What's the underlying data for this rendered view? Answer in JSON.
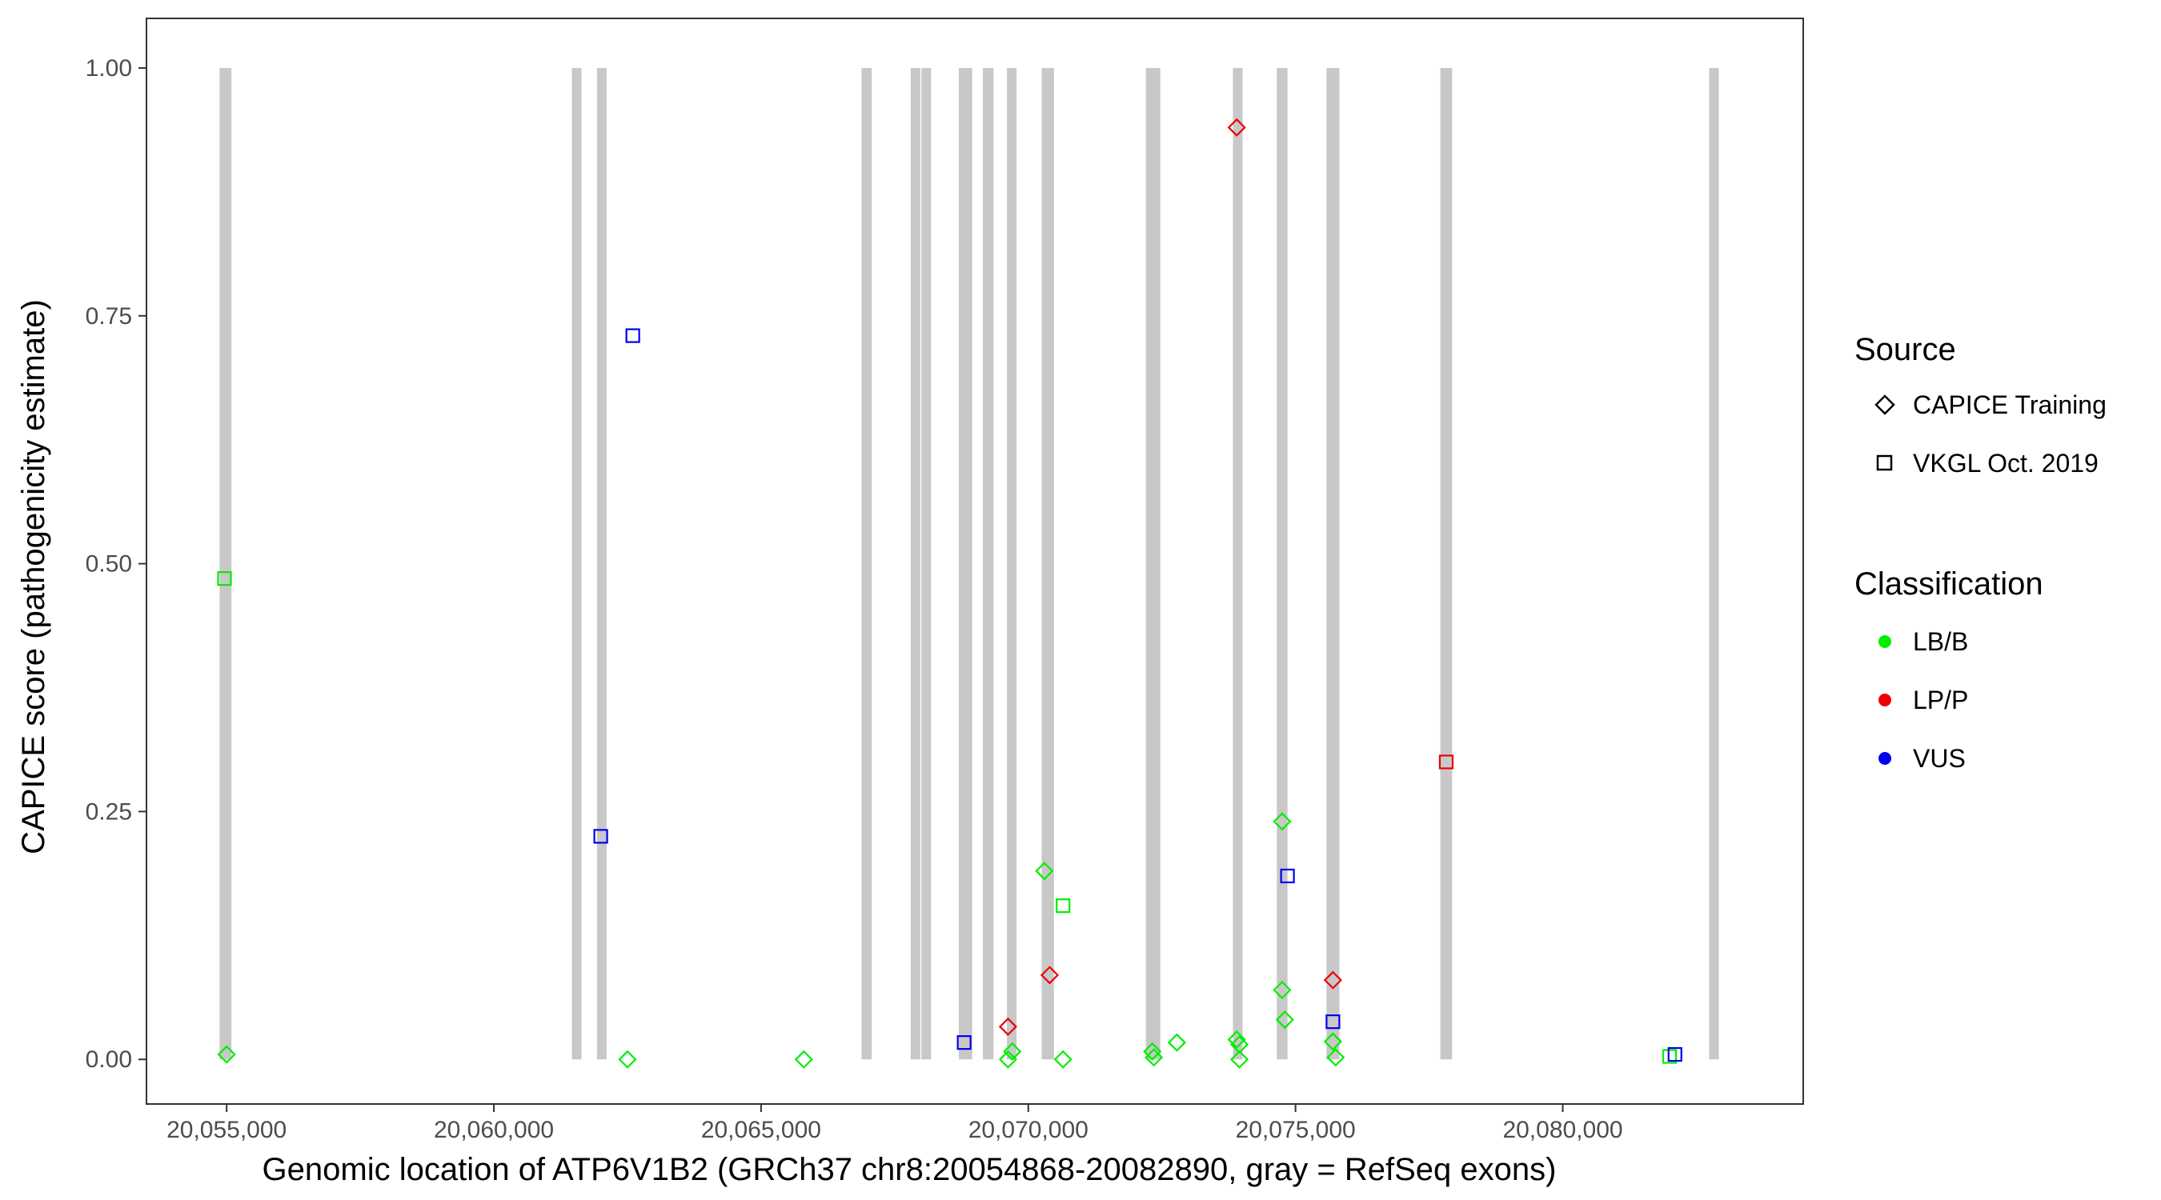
{
  "chart_data": {
    "type": "scatter",
    "xlabel": "Genomic location of ATP6V1B2 (GRCh37 chr8:20054868-20082890, gray = RefSeq exons)",
    "ylabel": "CAPICE score (pathogenicity estimate)",
    "xlim": [
      20053500,
      20084500
    ],
    "ylim": [
      -0.045,
      1.05
    ],
    "x_ticks": [
      20055000,
      20060000,
      20065000,
      20070000,
      20075000,
      20080000
    ],
    "x_tick_labels": [
      "20,055,000",
      "20,060,000",
      "20,065,000",
      "20,070,000",
      "20,075,000",
      "20,080,000"
    ],
    "y_ticks": [
      0,
      0.25,
      0.5,
      0.75,
      1.0
    ],
    "y_tick_labels": [
      "0.00",
      "0.25",
      "0.50",
      "0.75",
      "1.00"
    ],
    "grid": false,
    "exon_color": "#c8c8c8",
    "exons": [
      {
        "start": 20054868,
        "end": 20055090
      },
      {
        "start": 20061460,
        "end": 20061600
      },
      {
        "start": 20061930,
        "end": 20062090
      },
      {
        "start": 20066880,
        "end": 20067070
      },
      {
        "start": 20067800,
        "end": 20067980
      },
      {
        "start": 20068000,
        "end": 20068180
      },
      {
        "start": 20068700,
        "end": 20068950
      },
      {
        "start": 20069150,
        "end": 20069350
      },
      {
        "start": 20069600,
        "end": 20069780
      },
      {
        "start": 20070250,
        "end": 20070480
      },
      {
        "start": 20072200,
        "end": 20072470
      },
      {
        "start": 20073830,
        "end": 20074000
      },
      {
        "start": 20074650,
        "end": 20074850
      },
      {
        "start": 20075580,
        "end": 20075820
      },
      {
        "start": 20077710,
        "end": 20077930
      },
      {
        "start": 20082740,
        "end": 20082890
      }
    ],
    "legend": {
      "position": "right",
      "source": {
        "title": "Source",
        "items": [
          {
            "label": "CAPICE Training",
            "shape": "diamond"
          },
          {
            "label": "VKGL Oct. 2019",
            "shape": "square"
          }
        ]
      },
      "classification": {
        "title": "Classification",
        "items": [
          {
            "label": "LB/B",
            "color": "#00ee00"
          },
          {
            "label": "LP/P",
            "color": "#ee0000"
          },
          {
            "label": "VUS",
            "color": "#0000ee"
          }
        ]
      }
    },
    "points": [
      {
        "x": 20054960,
        "y": 0.485,
        "source": "VKGL Oct. 2019",
        "classification": "LB/B"
      },
      {
        "x": 20055000,
        "y": 0.005,
        "source": "CAPICE Training",
        "classification": "LB/B"
      },
      {
        "x": 20062000,
        "y": 0.225,
        "source": "VKGL Oct. 2019",
        "classification": "VUS"
      },
      {
        "x": 20062500,
        "y": 0.0,
        "source": "CAPICE Training",
        "classification": "LB/B"
      },
      {
        "x": 20062600,
        "y": 0.73,
        "source": "VKGL Oct. 2019",
        "classification": "VUS"
      },
      {
        "x": 20065800,
        "y": 0.0,
        "source": "CAPICE Training",
        "classification": "LB/B"
      },
      {
        "x": 20068800,
        "y": 0.017,
        "source": "VKGL Oct. 2019",
        "classification": "VUS"
      },
      {
        "x": 20069620,
        "y": 0.033,
        "source": "CAPICE Training",
        "classification": "LP/P"
      },
      {
        "x": 20069620,
        "y": 0.0,
        "source": "CAPICE Training",
        "classification": "LB/B"
      },
      {
        "x": 20069700,
        "y": 0.008,
        "source": "CAPICE Training",
        "classification": "LB/B"
      },
      {
        "x": 20070300,
        "y": 0.19,
        "source": "CAPICE Training",
        "classification": "LB/B"
      },
      {
        "x": 20070400,
        "y": 0.085,
        "source": "CAPICE Training",
        "classification": "LP/P"
      },
      {
        "x": 20070650,
        "y": 0.155,
        "source": "VKGL Oct. 2019",
        "classification": "LB/B"
      },
      {
        "x": 20070650,
        "y": 0.0,
        "source": "CAPICE Training",
        "classification": "LB/B"
      },
      {
        "x": 20072320,
        "y": 0.008,
        "source": "CAPICE Training",
        "classification": "LB/B"
      },
      {
        "x": 20072350,
        "y": 0.002,
        "source": "CAPICE Training",
        "classification": "LB/B"
      },
      {
        "x": 20072780,
        "y": 0.017,
        "source": "CAPICE Training",
        "classification": "LB/B"
      },
      {
        "x": 20073900,
        "y": 0.94,
        "source": "CAPICE Training",
        "classification": "LP/P"
      },
      {
        "x": 20073900,
        "y": 0.02,
        "source": "CAPICE Training",
        "classification": "LB/B"
      },
      {
        "x": 20073950,
        "y": 0.015,
        "source": "CAPICE Training",
        "classification": "LB/B"
      },
      {
        "x": 20073950,
        "y": 0.0,
        "source": "CAPICE Training",
        "classification": "LB/B"
      },
      {
        "x": 20074750,
        "y": 0.24,
        "source": "CAPICE Training",
        "classification": "LB/B"
      },
      {
        "x": 20074750,
        "y": 0.07,
        "source": "CAPICE Training",
        "classification": "LB/B"
      },
      {
        "x": 20074800,
        "y": 0.04,
        "source": "CAPICE Training",
        "classification": "LB/B"
      },
      {
        "x": 20074850,
        "y": 0.185,
        "source": "VKGL Oct. 2019",
        "classification": "VUS"
      },
      {
        "x": 20075700,
        "y": 0.08,
        "source": "CAPICE Training",
        "classification": "LP/P"
      },
      {
        "x": 20075700,
        "y": 0.038,
        "source": "VKGL Oct. 2019",
        "classification": "VUS"
      },
      {
        "x": 20075700,
        "y": 0.018,
        "source": "CAPICE Training",
        "classification": "LB/B"
      },
      {
        "x": 20075750,
        "y": 0.002,
        "source": "CAPICE Training",
        "classification": "LB/B"
      },
      {
        "x": 20077820,
        "y": 0.3,
        "source": "VKGL Oct. 2019",
        "classification": "LP/P"
      },
      {
        "x": 20082000,
        "y": 0.003,
        "source": "VKGL Oct. 2019",
        "classification": "LB/B"
      },
      {
        "x": 20082100,
        "y": 0.005,
        "source": "VKGL Oct. 2019",
        "classification": "VUS"
      }
    ]
  }
}
